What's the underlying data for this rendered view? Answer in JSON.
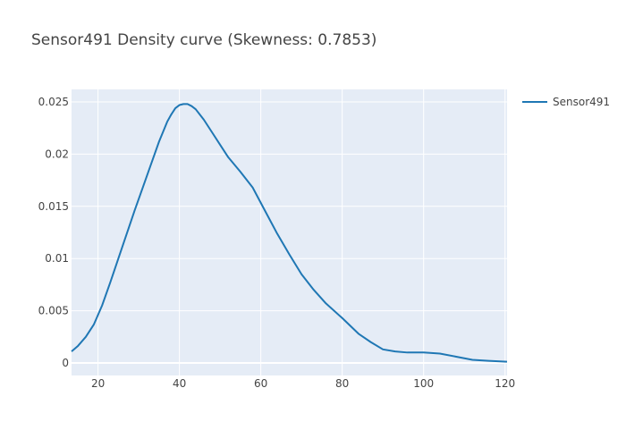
{
  "chart_data": {
    "type": "line",
    "title": "Sensor491 Density curve (Skewness: 0.7853)",
    "xlabel": "",
    "ylabel": "",
    "xlim": [
      13.5,
      120.5
    ],
    "ylim": [
      -0.0012,
      0.0262
    ],
    "x_ticks": [
      20,
      40,
      60,
      80,
      100,
      120
    ],
    "x_tick_labels": [
      "20",
      "40",
      "60",
      "80",
      "100",
      "120"
    ],
    "y_ticks": [
      0,
      0.005,
      0.01,
      0.015,
      0.02,
      0.025
    ],
    "y_tick_labels": [
      "0",
      "0.005",
      "0.01",
      "0.015",
      "0.02",
      "0.025"
    ],
    "grid": true,
    "legend_position": "top-right",
    "series": [
      {
        "name": "Sensor491",
        "color": "#1f77b4",
        "x": [
          13.5,
          15,
          17,
          19,
          21,
          23,
          25,
          27,
          29,
          31,
          33,
          35,
          37,
          38,
          39,
          40,
          41,
          42,
          43,
          44,
          46,
          48,
          50,
          52,
          55,
          58,
          61,
          64,
          67,
          70,
          73,
          76,
          80,
          84,
          87,
          90,
          93,
          96,
          100,
          104,
          108,
          112,
          116,
          120.5
        ],
        "y": [
          0.0011,
          0.0016,
          0.0025,
          0.0037,
          0.0055,
          0.0077,
          0.01,
          0.0123,
          0.0146,
          0.0168,
          0.019,
          0.0212,
          0.0231,
          0.0238,
          0.0244,
          0.0247,
          0.0248,
          0.0248,
          0.0246,
          0.0243,
          0.0233,
          0.0221,
          0.0209,
          0.0197,
          0.0183,
          0.0168,
          0.0146,
          0.0124,
          0.0104,
          0.0085,
          0.007,
          0.0057,
          0.0043,
          0.0028,
          0.002,
          0.0013,
          0.0011,
          0.001,
          0.001,
          0.0009,
          0.0006,
          0.0003,
          0.0002,
          0.00012
        ]
      }
    ]
  }
}
